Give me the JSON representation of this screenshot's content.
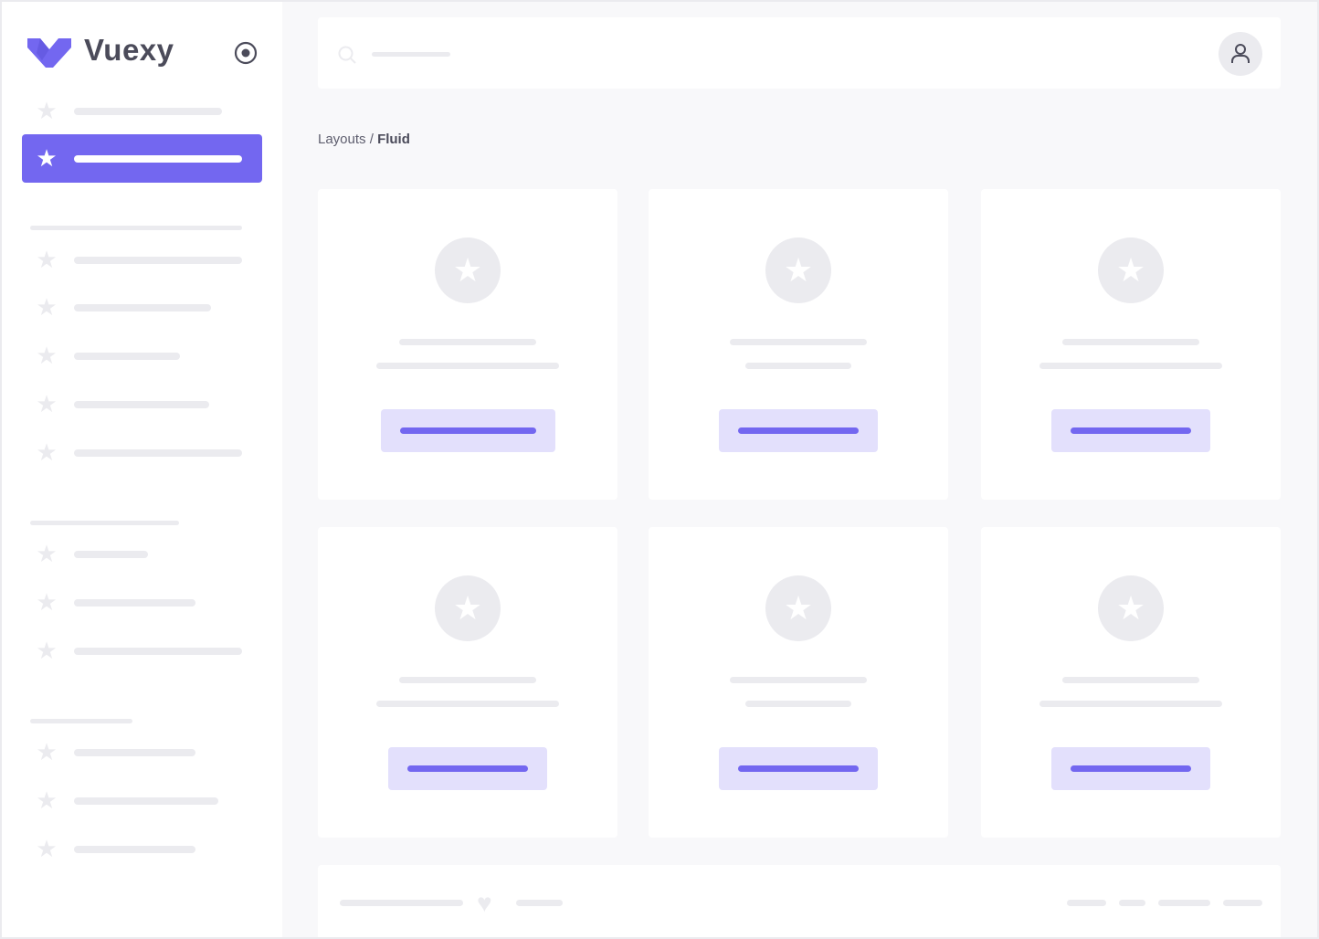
{
  "sidebar": {
    "brand": "Vuexy",
    "brand_color": "#7367f0",
    "toggle_icon": "radio-circle-icon",
    "item_icon": "star-icon"
  },
  "navbar": {
    "search_icon": "search-icon",
    "user_icon": "user-icon"
  },
  "breadcrumb": {
    "parent": "Layouts",
    "separator": " / ",
    "current": "Fluid"
  },
  "cards": {
    "icon": "star-icon",
    "count": 6
  },
  "footer": {
    "icon": "heart-icon"
  },
  "colors": {
    "primary": "#7367f0",
    "primary_light": "#e3e0fc",
    "placeholder": "#ebebef",
    "background": "#f8f8fa"
  }
}
